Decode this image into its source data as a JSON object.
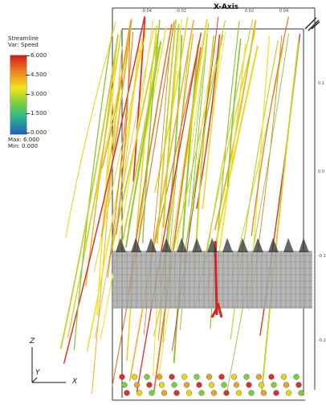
{
  "legend": {
    "title_line1": "Streamline",
    "title_line2": "Var: Speed",
    "ticks": [
      "6.000",
      "4.500",
      "3.000",
      "1.500",
      "0.000"
    ],
    "max_label": "Max: 6.000",
    "min_label": "Min: 0.000",
    "colors": [
      "#d7191c",
      "#f08a1e",
      "#f3e51b",
      "#7ccf3a",
      "#2db88c",
      "#1f5fbf"
    ]
  },
  "axes": {
    "x_title": "X-Axis",
    "triad": {
      "z": "Z",
      "y": "Y",
      "x": "X"
    }
  },
  "scene": {
    "streamline_colors": [
      "#e8d41a",
      "#f2e23a",
      "#c7d12e",
      "#8fc43a",
      "#e07a1f",
      "#d8322a",
      "#f0b02a"
    ],
    "mesh_color": "#a9a9a9",
    "bead_colors": [
      "#d8322a",
      "#e8d41a",
      "#7ccf3a",
      "#f0a02a"
    ]
  }
}
